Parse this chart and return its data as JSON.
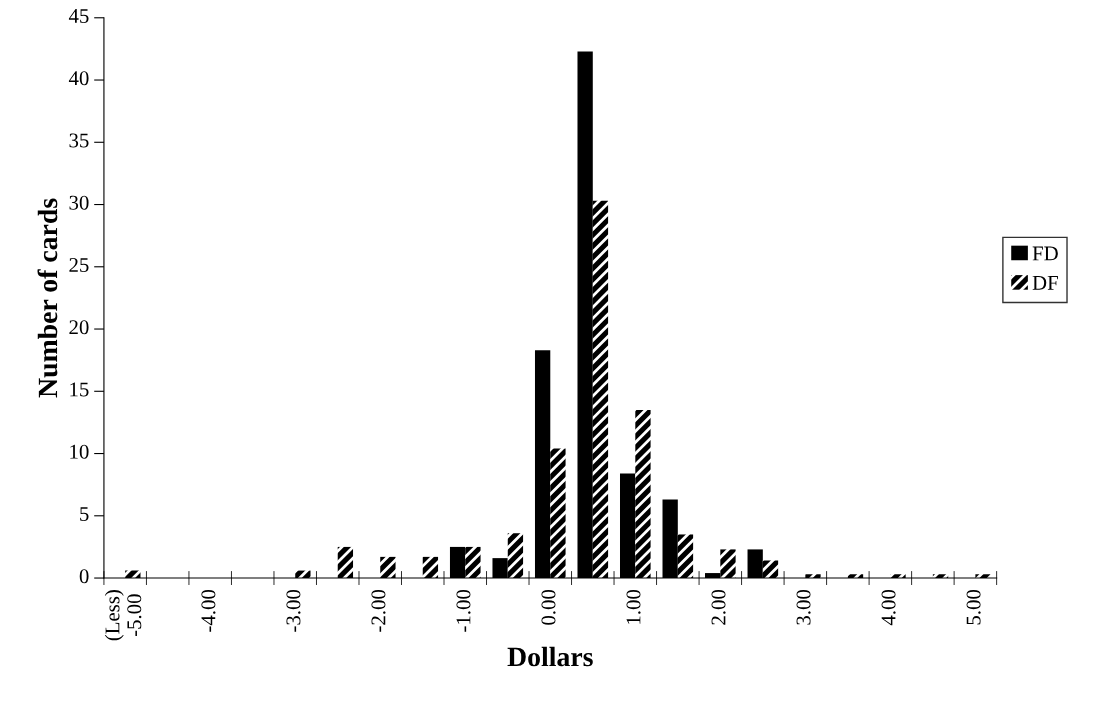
{
  "chart_data": {
    "type": "bar",
    "xlabel": "Dollars",
    "ylabel": "Number of cards",
    "categories": [
      "(Less)\n-5.00",
      null,
      "-4.00",
      null,
      "-3.00",
      null,
      "-2.00",
      null,
      "-1.00",
      null,
      "0.00",
      null,
      "1.00",
      null,
      "2.00",
      null,
      "3.00",
      null,
      "4.00",
      null,
      "5.00"
    ],
    "series": [
      {
        "name": "FD",
        "color": "#000000",
        "values": [
          null,
          null,
          null,
          null,
          null,
          null,
          null,
          null,
          2.5,
          1.6,
          18.3,
          42.3,
          8.4,
          6.3,
          0.4,
          2.3,
          null,
          null,
          null,
          null,
          null
        ]
      },
      {
        "name": "DF",
        "color": "#000000",
        "values": [
          0.6,
          null,
          null,
          null,
          0.6,
          2.5,
          1.7,
          1.7,
          2.5,
          3.6,
          10.4,
          30.3,
          13.5,
          3.5,
          2.3,
          1.4,
          0.3,
          0.3,
          0.3,
          0.3,
          0.3
        ]
      }
    ],
    "ylim": [
      0,
      45
    ],
    "yticks": [
      0,
      5,
      10,
      15,
      20,
      25,
      30,
      35,
      40,
      45
    ],
    "grid": false,
    "legend": "right"
  }
}
